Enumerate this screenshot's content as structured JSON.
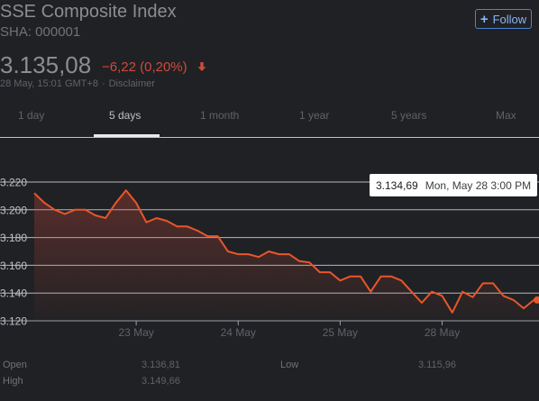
{
  "header": {
    "title": "SSE Composite Index",
    "ticker": "SHA: 000001",
    "follow_label": "Follow"
  },
  "quote": {
    "price": "3.135,08",
    "change": "−6,22 (0,20%)",
    "direction": "down",
    "timestamp": "28 May, 15:01 GMT+8",
    "disclaimer": "Disclaimer"
  },
  "tabs": [
    {
      "label": "1 day",
      "active": false
    },
    {
      "label": "5 days",
      "active": true
    },
    {
      "label": "1 month",
      "active": false
    },
    {
      "label": "1 year",
      "active": false
    },
    {
      "label": "5 years",
      "active": false
    },
    {
      "label": "Max",
      "active": false
    }
  ],
  "tooltip": {
    "value": "3.134,69",
    "date": "Mon, May 28 3:00 PM"
  },
  "stats": [
    {
      "label": "Open",
      "value": "3.136,81"
    },
    {
      "label": "Low",
      "value": "3.115,96"
    },
    {
      "label": "High",
      "value": "3.149,66"
    }
  ],
  "colors": {
    "line": "#e8562a",
    "down": "#d04a3a",
    "accent": "#8ab4f8",
    "gridline": "#e8eaed"
  },
  "chart_data": {
    "type": "area",
    "ylim": [
      3120,
      3220
    ],
    "yticks": [
      "3.220",
      "3.200",
      "3.180",
      "3.160",
      "3.140",
      "3.120"
    ],
    "ytick_values": [
      3220,
      3200,
      3180,
      3160,
      3140,
      3120
    ],
    "xlabels": [
      {
        "label": "23 May",
        "day_index": 1
      },
      {
        "label": "24 May",
        "day_index": 2
      },
      {
        "label": "25 May",
        "day_index": 3
      },
      {
        "label": "28 May",
        "day_index": 4
      }
    ],
    "x_range": [
      0.0,
      4.95
    ],
    "series": [
      {
        "points": [
          [
            0.0,
            3212
          ],
          [
            0.1,
            3205
          ],
          [
            0.2,
            3200
          ],
          [
            0.3,
            3197
          ],
          [
            0.4,
            3200
          ],
          [
            0.5,
            3200
          ],
          [
            0.6,
            3196
          ],
          [
            0.7,
            3194
          ],
          [
            0.8,
            3205
          ],
          [
            0.9,
            3214
          ],
          [
            1.0,
            3205
          ],
          [
            1.1,
            3191
          ],
          [
            1.2,
            3194
          ],
          [
            1.3,
            3192
          ],
          [
            1.4,
            3188
          ],
          [
            1.5,
            3188
          ],
          [
            1.6,
            3185
          ],
          [
            1.7,
            3181
          ],
          [
            1.8,
            3181
          ],
          [
            1.9,
            3170
          ],
          [
            2.0,
            3168
          ],
          [
            2.1,
            3168
          ],
          [
            2.2,
            3166
          ],
          [
            2.3,
            3170
          ],
          [
            2.4,
            3168
          ],
          [
            2.5,
            3168
          ],
          [
            2.6,
            3163
          ],
          [
            2.7,
            3162
          ],
          [
            2.8,
            3155
          ],
          [
            2.9,
            3155
          ],
          [
            3.0,
            3149
          ],
          [
            3.1,
            3152
          ],
          [
            3.2,
            3152
          ],
          [
            3.3,
            3141
          ],
          [
            3.4,
            3152
          ],
          [
            3.5,
            3152
          ],
          [
            3.6,
            3149
          ],
          [
            3.7,
            3141
          ],
          [
            3.8,
            3133
          ],
          [
            3.9,
            3141
          ],
          [
            4.0,
            3138
          ],
          [
            4.1,
            3126
          ],
          [
            4.2,
            3141
          ],
          [
            4.3,
            3137
          ],
          [
            4.4,
            3147
          ],
          [
            4.5,
            3147
          ],
          [
            4.6,
            3138
          ],
          [
            4.7,
            3135
          ],
          [
            4.8,
            3129
          ],
          [
            4.9,
            3135
          ],
          [
            4.95,
            3135
          ]
        ]
      }
    ],
    "grid": true
  }
}
